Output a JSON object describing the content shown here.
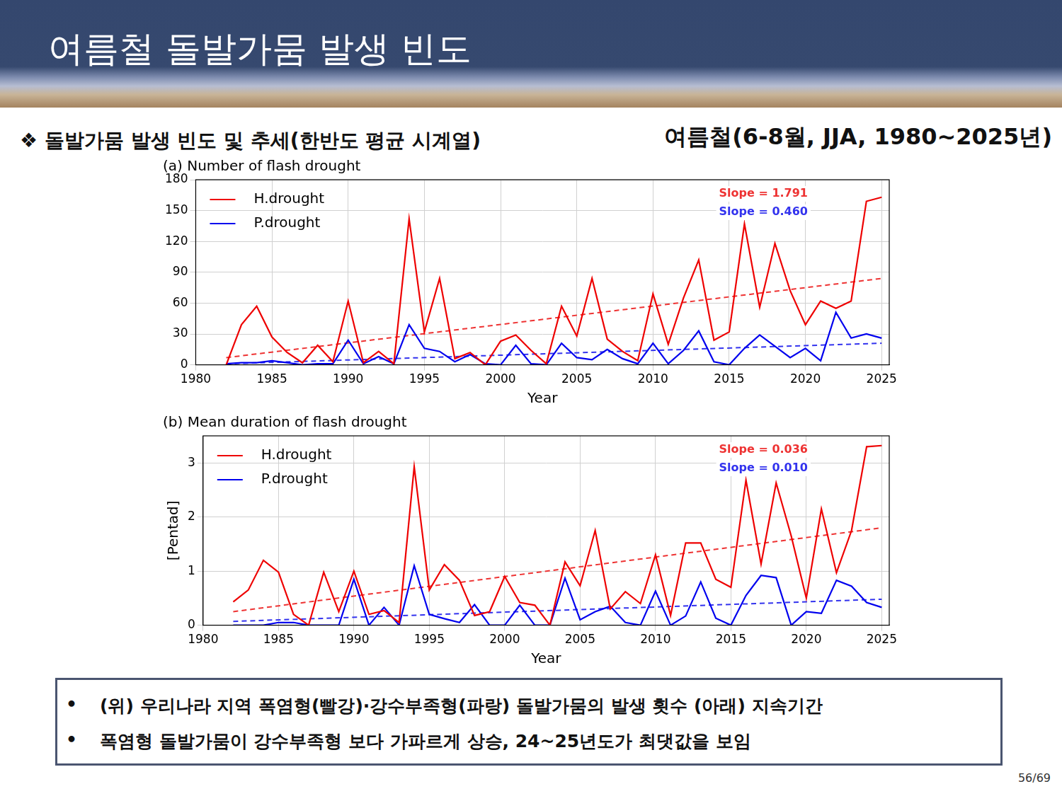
{
  "header": {
    "title": "여름철 돌발가뭄 발생 빈도"
  },
  "section": {
    "bullet": "❖",
    "heading": "돌발가뭄 발생 빈도 및 추세(한반도 평균 시계열)",
    "period": "여름철(6-8월, JJA, 1980~2025년)"
  },
  "chart_data": [
    {
      "type": "line",
      "title": "(a) Number of flash drought",
      "x_label": "Year",
      "x": [
        1982,
        1983,
        1984,
        1985,
        1986,
        1987,
        1988,
        1989,
        1990,
        1991,
        1992,
        1993,
        1994,
        1995,
        1996,
        1997,
        1998,
        1999,
        2000,
        2001,
        2002,
        2003,
        2004,
        2005,
        2006,
        2007,
        2008,
        2009,
        2010,
        2011,
        2012,
        2013,
        2014,
        2015,
        2016,
        2017,
        2018,
        2019,
        2020,
        2021,
        2022,
        2023,
        2024,
        2025
      ],
      "xlim": [
        1980,
        2025.5
      ],
      "xticks": [
        1980,
        1985,
        1990,
        1995,
        2000,
        2005,
        2010,
        2015,
        2020,
        2025
      ],
      "ylim": [
        0,
        180
      ],
      "yticks": [
        0,
        30,
        60,
        90,
        120,
        150,
        180
      ],
      "grid": true,
      "legend": "upper left",
      "series": [
        {
          "name": "H.drought",
          "color": "#ee0000",
          "values": [
            0,
            39,
            57,
            27,
            12,
            2,
            19,
            3,
            62,
            2,
            13,
            1,
            142,
            32,
            84,
            6,
            12,
            0,
            23,
            29,
            14,
            1,
            57,
            28,
            84,
            25,
            13,
            4,
            69,
            20,
            65,
            102,
            24,
            32,
            137,
            56,
            118,
            72,
            39,
            62,
            55,
            62,
            159,
            163
          ]
        },
        {
          "name": "P.drought",
          "color": "#0000ee",
          "values": [
            1,
            2,
            2,
            4,
            2,
            0,
            1,
            1,
            24,
            1,
            8,
            1,
            39,
            16,
            13,
            3,
            10,
            1,
            0,
            19,
            1,
            0,
            21,
            7,
            5,
            15,
            6,
            1,
            21,
            1,
            14,
            33,
            3,
            0,
            16,
            29,
            18,
            7,
            16,
            4,
            51,
            26,
            30,
            26
          ]
        },
        {
          "x": [
            1982,
            2025
          ],
          "values": [
            7,
            84
          ],
          "color": "#ee3333",
          "line_style": "dashed"
        },
        {
          "x": [
            1982,
            2025
          ],
          "values": [
            1,
            21
          ],
          "color": "#3333ee",
          "line_style": "dashed"
        }
      ],
      "annotations": [
        {
          "text": "Slope = 1.791",
          "color": "#ee3333"
        },
        {
          "text": "Slope = 0.460",
          "color": "#3333ee"
        }
      ]
    },
    {
      "type": "line",
      "title": "(b) Mean duration of flash drought",
      "x_label": "Year",
      "y_label": "[Pentad]",
      "x": [
        1982,
        1983,
        1984,
        1985,
        1986,
        1987,
        1988,
        1989,
        1990,
        1991,
        1992,
        1993,
        1994,
        1995,
        1996,
        1997,
        1998,
        1999,
        2000,
        2001,
        2002,
        2003,
        2004,
        2005,
        2006,
        2007,
        2008,
        2009,
        2010,
        2011,
        2012,
        2013,
        2014,
        2015,
        2016,
        2017,
        2018,
        2019,
        2020,
        2021,
        2022,
        2023,
        2024,
        2025
      ],
      "xlim": [
        1980,
        2025.5
      ],
      "xticks": [
        1980,
        1985,
        1990,
        1995,
        2000,
        2005,
        2010,
        2015,
        2020,
        2025
      ],
      "ylim": [
        0,
        3.5
      ],
      "yticks": [
        0,
        1,
        2,
        3
      ],
      "grid": true,
      "legend": "upper left",
      "series": [
        {
          "name": "H.drought",
          "color": "#ee0000",
          "values": [
            0.43,
            0.65,
            1.2,
            0.98,
            0.2,
            0,
            0.98,
            0.25,
            1.0,
            0.2,
            0.27,
            0.05,
            2.93,
            0.65,
            1.12,
            0.83,
            0.18,
            0.25,
            0.9,
            0.42,
            0.37,
            0,
            1.17,
            0.73,
            1.75,
            0.3,
            0.62,
            0.4,
            1.3,
            0.18,
            1.52,
            1.52,
            0.85,
            0.7,
            2.68,
            1.13,
            2.63,
            1.65,
            0.5,
            2.15,
            0.97,
            1.75,
            3.3,
            3.32
          ]
        },
        {
          "name": "P.drought",
          "color": "#0000ee",
          "values": [
            0,
            0,
            0,
            0.05,
            0.05,
            0,
            0,
            0,
            0.85,
            0,
            0.33,
            0,
            1.1,
            0.2,
            0.12,
            0.05,
            0.38,
            0,
            0,
            0.37,
            0,
            0,
            0.87,
            0.1,
            0.25,
            0.35,
            0.05,
            0,
            0.63,
            0,
            0.17,
            0.8,
            0.13,
            0,
            0.55,
            0.92,
            0.88,
            0,
            0.25,
            0.22,
            0.83,
            0.72,
            0.42,
            0.33
          ]
        },
        {
          "x": [
            1982,
            2025
          ],
          "values": [
            0.25,
            1.8
          ],
          "color": "#ee3333",
          "line_style": "dashed"
        },
        {
          "x": [
            1982,
            2025
          ],
          "values": [
            0.07,
            0.48
          ],
          "color": "#3333ee",
          "line_style": "dashed"
        }
      ],
      "annotations": [
        {
          "text": "Slope = 0.036",
          "color": "#ee3333"
        },
        {
          "text": "Slope = 0.010",
          "color": "#3333ee"
        }
      ]
    }
  ],
  "notes": [
    {
      "bullet": "•",
      "text": "(위) 우리나라 지역 폭염형(빨강)·강수부족형(파랑) 돌발가뭄의 발생 횟수 (아래) 지속기간"
    },
    {
      "bullet": "•",
      "text": "폭염형 돌발가뭄이 강수부족형 보다 가파르게 상승, 24~25년도가 최댓값을 보임"
    }
  ],
  "page": "56/69"
}
